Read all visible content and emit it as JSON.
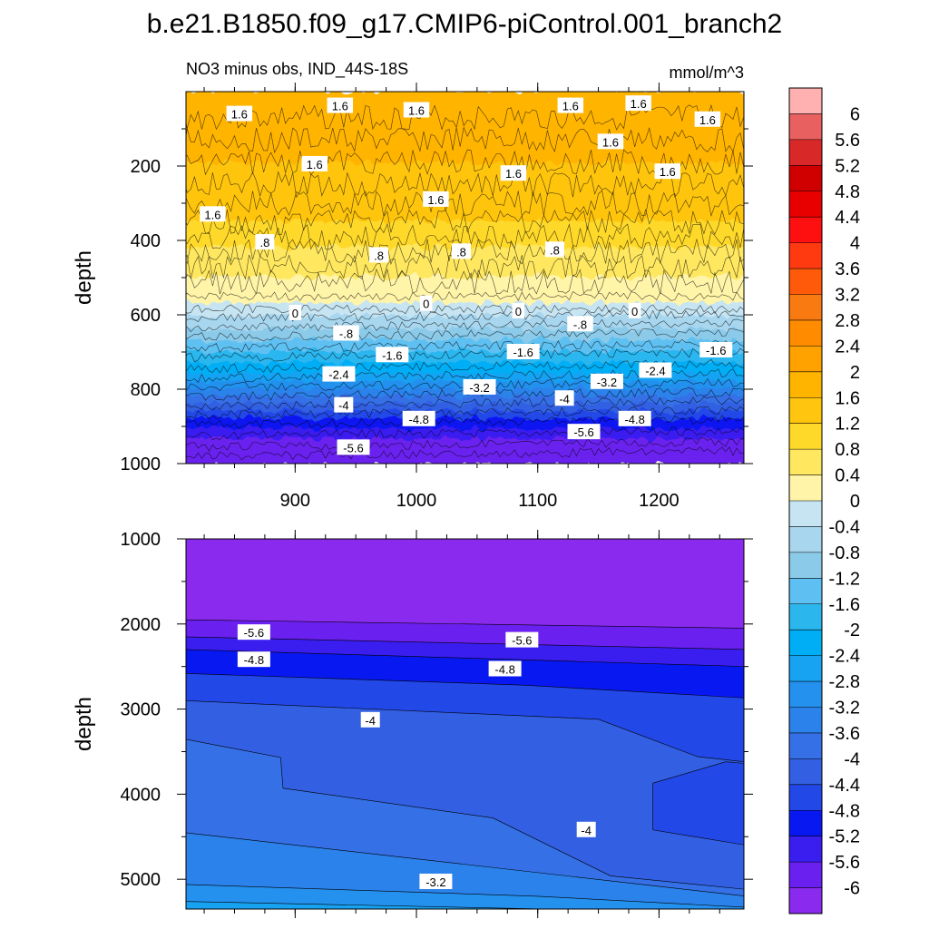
{
  "title": "b.e21.B1850.f09_g17.CMIP6-piControl.001_branch2",
  "subtitle_left": "NO3 minus obs, IND_44S-18S",
  "subtitle_right": "mmol/m^3",
  "chart_data": [
    {
      "type": "heatmap",
      "panel": "upper",
      "title": "NO3 minus obs, IND_44S-18S",
      "units": "mmol/m^3",
      "xlabel": "",
      "ylabel": "depth",
      "xlim": [
        810,
        1270
      ],
      "ylim": [
        1000,
        0
      ],
      "xticks": [
        900,
        1000,
        1100,
        1200
      ],
      "xtick_labels": [
        "900",
        "1000",
        "1100",
        "1200"
      ],
      "yticks": [
        200,
        400,
        600,
        800,
        1000
      ],
      "ytick_labels": [
        "200",
        "400",
        "600",
        "800",
        "1000"
      ],
      "depth_profile": [
        {
          "depth": 0,
          "value": 1.7
        },
        {
          "depth": 150,
          "value": 1.65
        },
        {
          "depth": 280,
          "value": 1.5
        },
        {
          "depth": 350,
          "value": 1.2
        },
        {
          "depth": 420,
          "value": 0.8
        },
        {
          "depth": 500,
          "value": 0.4
        },
        {
          "depth": 570,
          "value": 0.0
        },
        {
          "depth": 640,
          "value": -0.8
        },
        {
          "depth": 700,
          "value": -1.6
        },
        {
          "depth": 760,
          "value": -2.4
        },
        {
          "depth": 800,
          "value": -3.2
        },
        {
          "depth": 840,
          "value": -4.0
        },
        {
          "depth": 880,
          "value": -4.8
        },
        {
          "depth": 935,
          "value": -5.6
        },
        {
          "depth": 1000,
          "value": -6.0
        }
      ],
      "contour_labels": [
        {
          "text": "1.6",
          "x": 854,
          "depth": 60
        },
        {
          "text": "1.6",
          "x": 937,
          "depth": 38
        },
        {
          "text": "1.6",
          "x": 1000,
          "depth": 50
        },
        {
          "text": "1.6",
          "x": 1127,
          "depth": 38
        },
        {
          "text": "1.6",
          "x": 1183,
          "depth": 32
        },
        {
          "text": "1.6",
          "x": 1240,
          "depth": 75
        },
        {
          "text": "1.6",
          "x": 1160,
          "depth": 135
        },
        {
          "text": "1.6",
          "x": 1207,
          "depth": 215
        },
        {
          "text": "1.6",
          "x": 1080,
          "depth": 220
        },
        {
          "text": "1.6",
          "x": 1016,
          "depth": 290
        },
        {
          "text": "1.6",
          "x": 832,
          "depth": 330
        },
        {
          "text": "1.6",
          "x": 916,
          "depth": 195
        },
        {
          "text": ".8",
          "x": 875,
          "depth": 405
        },
        {
          "text": ".8",
          "x": 969,
          "depth": 440
        },
        {
          "text": ".8",
          "x": 1037,
          "depth": 430
        },
        {
          "text": ".8",
          "x": 1114,
          "depth": 425
        },
        {
          "text": "0",
          "x": 900,
          "depth": 595
        },
        {
          "text": "0",
          "x": 1008,
          "depth": 570
        },
        {
          "text": "0",
          "x": 1084,
          "depth": 590
        },
        {
          "text": "0",
          "x": 1180,
          "depth": 590
        },
        {
          "text": "-.8",
          "x": 1135,
          "depth": 625
        },
        {
          "text": "-.8",
          "x": 942,
          "depth": 650
        },
        {
          "text": "-1.6",
          "x": 980,
          "depth": 708
        },
        {
          "text": "-1.6",
          "x": 1088,
          "depth": 700
        },
        {
          "text": "-1.6",
          "x": 1247,
          "depth": 695
        },
        {
          "text": "-2.4",
          "x": 936,
          "depth": 760
        },
        {
          "text": "-2.4",
          "x": 1197,
          "depth": 750
        },
        {
          "text": "-3.2",
          "x": 1052,
          "depth": 795
        },
        {
          "text": "-3.2",
          "x": 1157,
          "depth": 780
        },
        {
          "text": "-4",
          "x": 940,
          "depth": 843
        },
        {
          "text": "-4",
          "x": 1122,
          "depth": 825
        },
        {
          "text": "-4.8",
          "x": 1002,
          "depth": 880
        },
        {
          "text": "-4.8",
          "x": 1180,
          "depth": 880
        },
        {
          "text": "-5.6",
          "x": 1138,
          "depth": 915
        },
        {
          "text": "-5.6",
          "x": 948,
          "depth": 957
        }
      ]
    },
    {
      "type": "heatmap",
      "panel": "lower",
      "xlabel": "",
      "ylabel": "depth",
      "xlim": [
        810,
        1270
      ],
      "ylim": [
        5350,
        1000
      ],
      "xticks": [
        900,
        1000,
        1100,
        1200
      ],
      "yticks": [
        1000,
        2000,
        3000,
        4000,
        5000
      ],
      "ytick_labels": [
        "1000",
        "2000",
        "3000",
        "4000",
        "5000"
      ],
      "contour_labels": [
        {
          "text": "-5.6",
          "x": 866,
          "depth": 2100
        },
        {
          "text": "-5.6",
          "x": 1087,
          "depth": 2190
        },
        {
          "text": "-4.8",
          "x": 866,
          "depth": 2420
        },
        {
          "text": "-4.8",
          "x": 1073,
          "depth": 2530
        },
        {
          "text": "-4",
          "x": 962,
          "depth": 3130
        },
        {
          "text": "-4",
          "x": 1140,
          "depth": 4420
        },
        {
          "text": "-3.2",
          "x": 1016,
          "depth": 5030
        }
      ]
    }
  ],
  "colorbar": {
    "levels": [
      "6",
      "5.6",
      "5.2",
      "4.8",
      "4.4",
      "4",
      "3.6",
      "3.2",
      "2.8",
      "2.4",
      "2",
      "1.6",
      "1.2",
      "0.8",
      "0.4",
      "0",
      "-0.4",
      "-0.8",
      "-1.2",
      "-1.6",
      "-2",
      "-2.4",
      "-2.8",
      "-3.2",
      "-3.6",
      "-4",
      "-4.4",
      "-4.8",
      "-5.2",
      "-5.6",
      "-6"
    ],
    "colors": [
      "#ffb0b0",
      "#e86060",
      "#d82828",
      "#d00000",
      "#e80000",
      "#ff1010",
      "#ff3a10",
      "#ff5a0a",
      "#f87a10",
      "#ff8c00",
      "#ffa200",
      "#ffb400",
      "#ffc50f",
      "#ffd92a",
      "#ffe860",
      "#fff4a8",
      "#c6e4f2",
      "#a7d6ee",
      "#8ccae9",
      "#5ec0f2",
      "#2cb6ee",
      "#00aef5",
      "#18a2f2",
      "#2491ee",
      "#2b82ea",
      "#3570e6",
      "#3360e2",
      "#2248e8",
      "#0818f0",
      "#3a1ef0",
      "#6a20ee",
      "#8a2aee"
    ]
  }
}
